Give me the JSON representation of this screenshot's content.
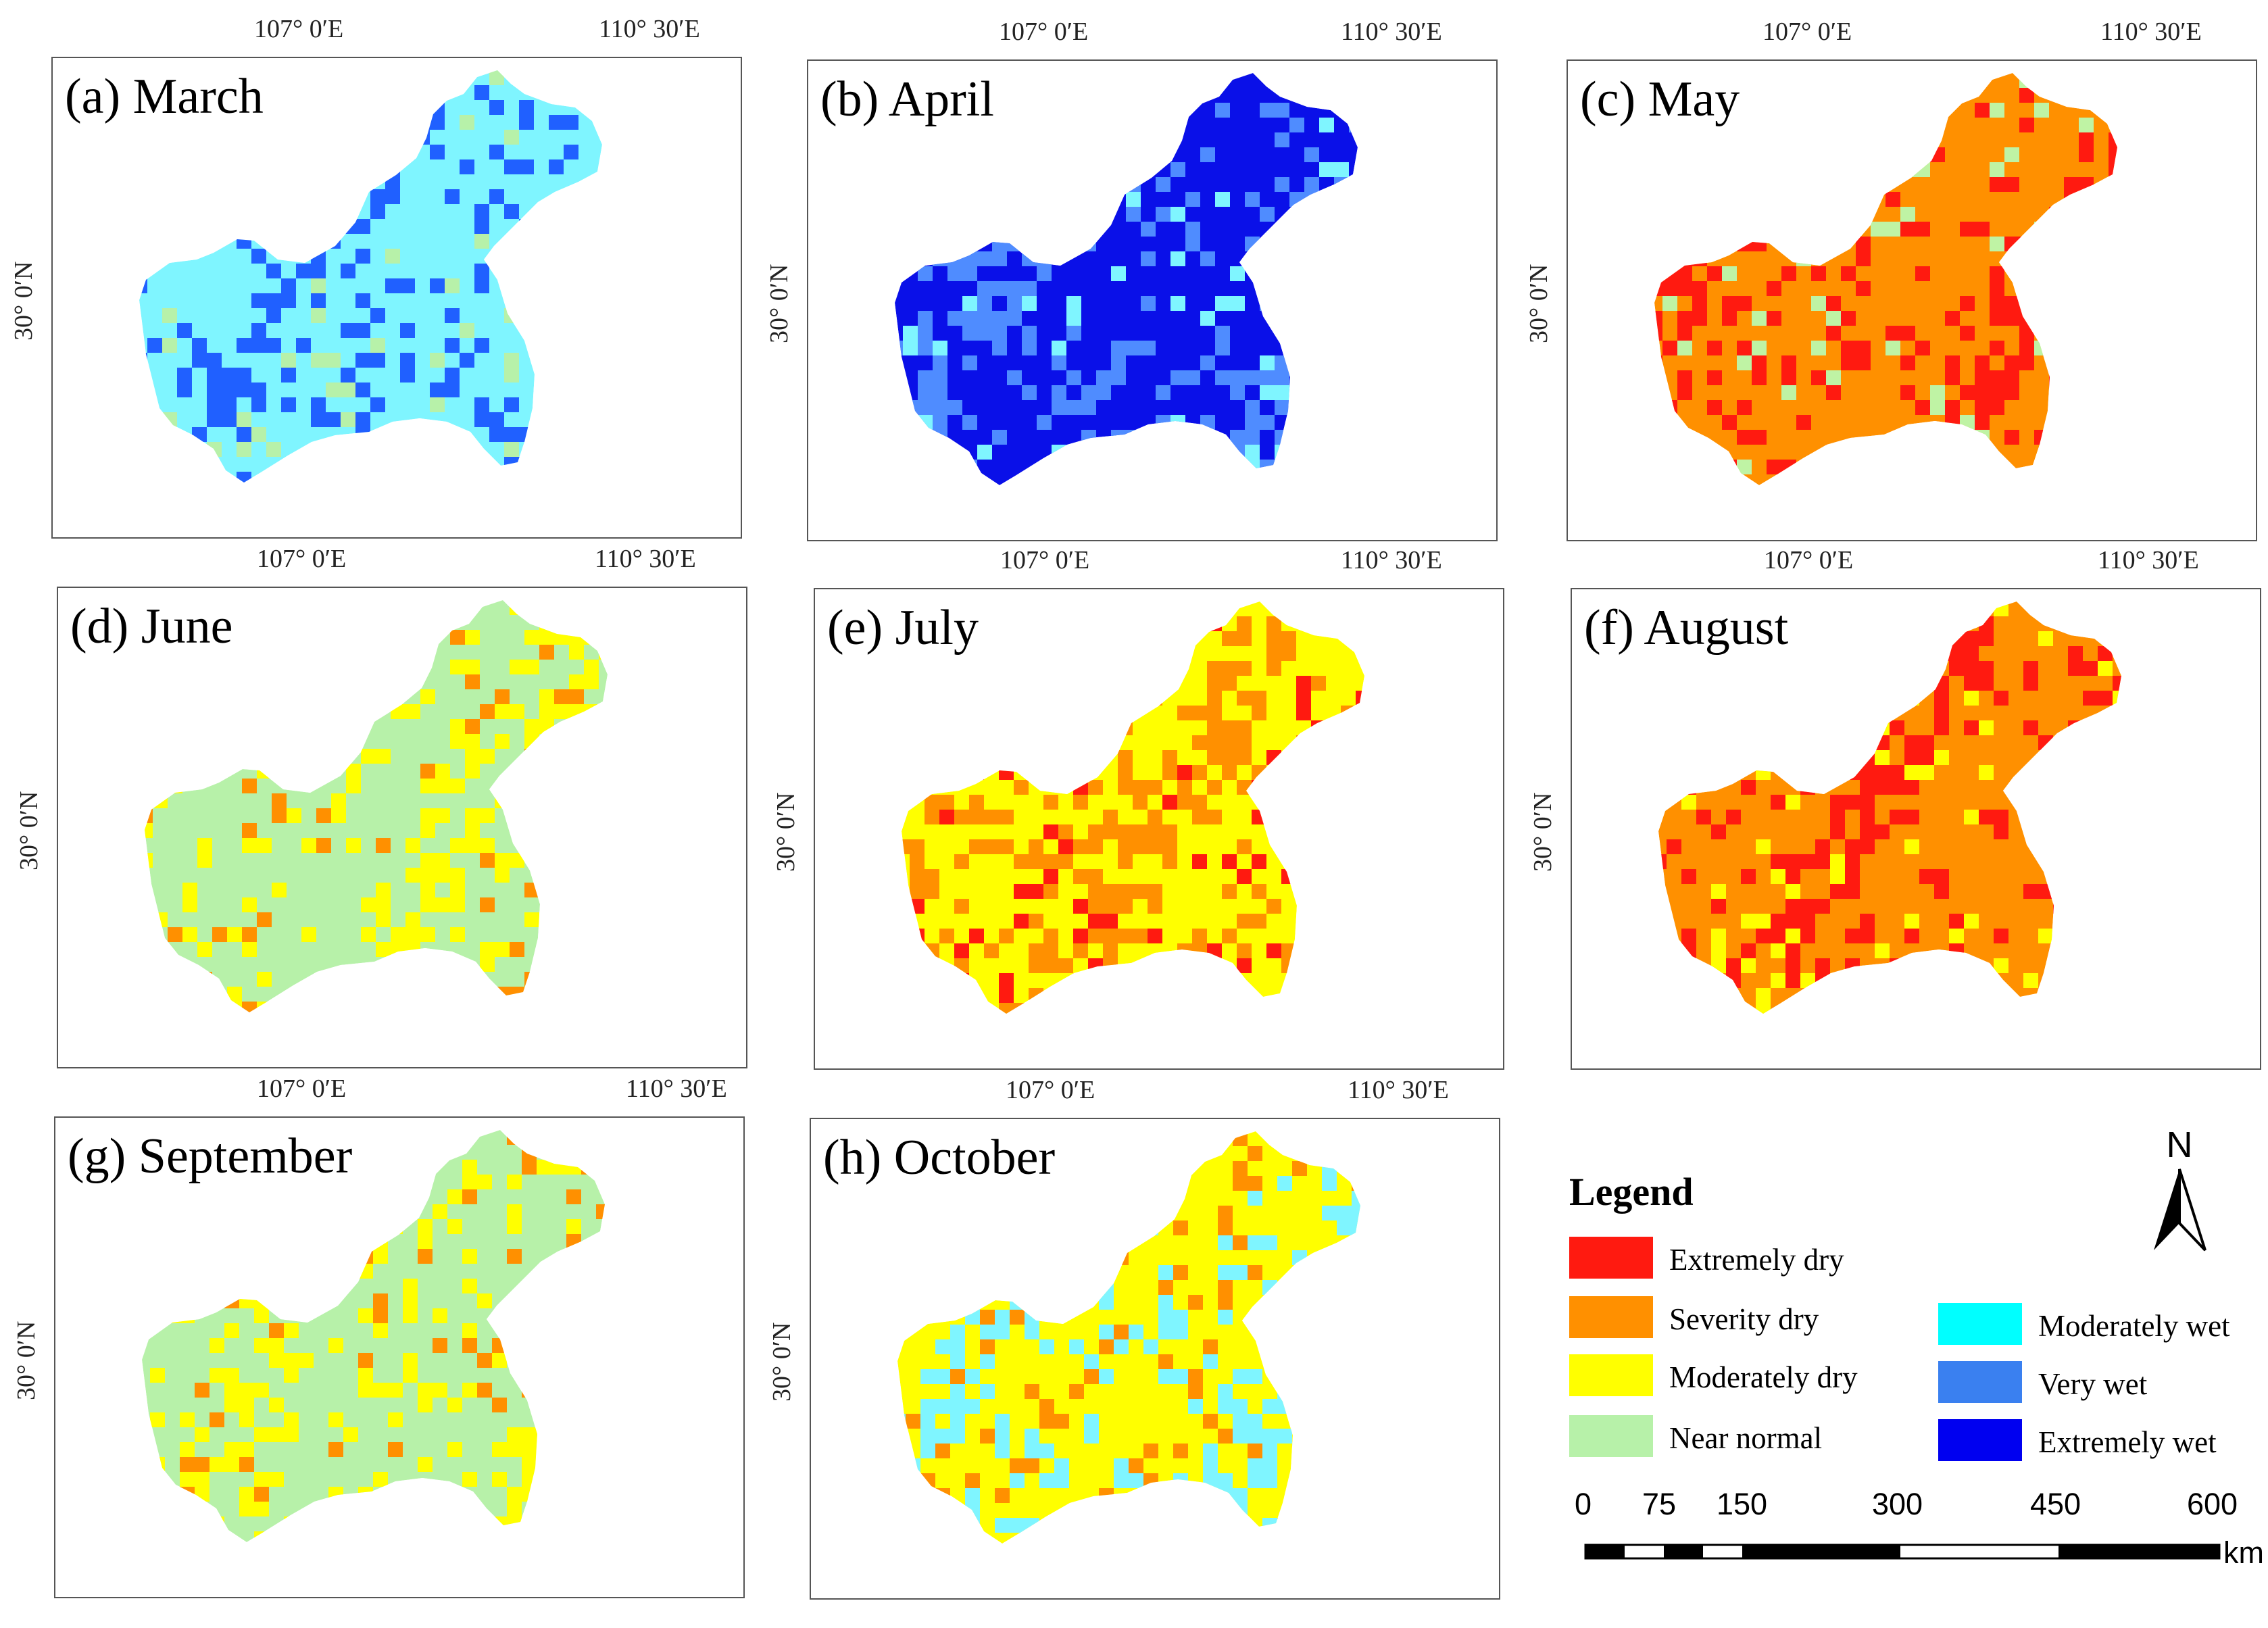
{
  "coords": {
    "lon1": "107° 0′E",
    "lon2": "110° 30′E",
    "lat": "30° 0′N"
  },
  "panels": [
    {
      "title": "(a) March",
      "palette": [
        "#7ff5ff",
        "#2060ff",
        "#b7f1a9"
      ]
    },
    {
      "title": "(b) April",
      "palette": [
        "#0a10e8",
        "#4f8cff",
        "#7ff5ff"
      ]
    },
    {
      "title": "(c) May",
      "palette": [
        "#ff9000",
        "#ff1a10",
        "#bff3a4"
      ]
    },
    {
      "title": "(d) June",
      "palette": [
        "#b7f1a9",
        "#ffff00",
        "#ff9000"
      ]
    },
    {
      "title": "(e) July",
      "palette": [
        "#ffff00",
        "#ff9000",
        "#ff1a10"
      ]
    },
    {
      "title": "(f) August",
      "palette": [
        "#ff9000",
        "#ff1a10",
        "#ffff00"
      ]
    },
    {
      "title": "(g) September",
      "palette": [
        "#b7f1a9",
        "#ffff00",
        "#ff9000"
      ]
    },
    {
      "title": "(h) October",
      "palette": [
        "#ffff00",
        "#7ff5ff",
        "#ff9000"
      ]
    }
  ],
  "legend": {
    "title": "Legend",
    "items": [
      {
        "label": "Extremely dry",
        "color": "#ff1a10"
      },
      {
        "label": "Severity dry",
        "color": "#ff9000"
      },
      {
        "label": "Moderately dry",
        "color": "#ffff00"
      },
      {
        "label": "Near normal",
        "color": "#b7f1a9"
      },
      {
        "label": "Moderately wet",
        "color": "#00ffff"
      },
      {
        "label": "Very wet",
        "color": "#3a80f0"
      },
      {
        "label": "Extremely wet",
        "color": "#0000f0"
      }
    ]
  },
  "north_label": "N",
  "scale": {
    "ticks": [
      "0",
      "75",
      "150",
      "300",
      "450",
      "600"
    ],
    "unit": "km"
  }
}
